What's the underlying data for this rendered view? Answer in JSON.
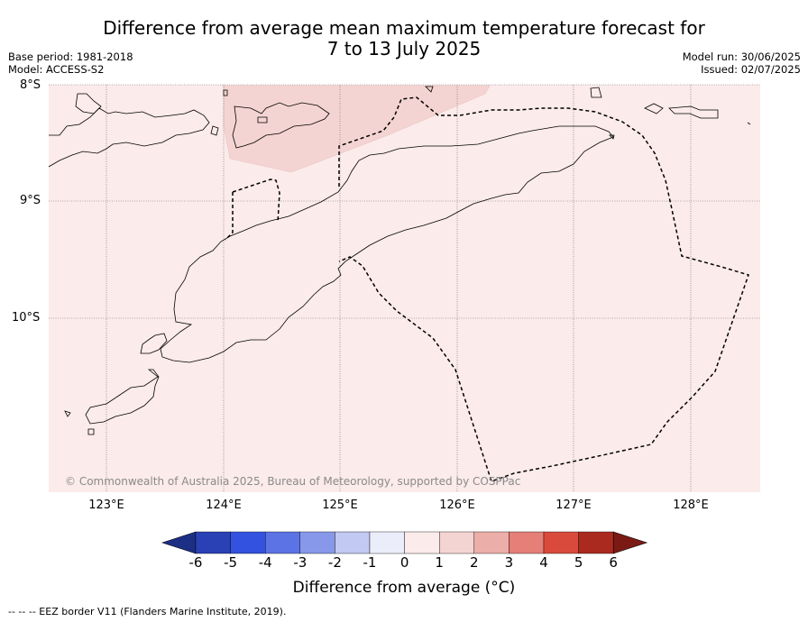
{
  "title_line1": "Difference from average mean maximum temperature forecast for",
  "title_line2": "7 to 13 July 2025",
  "base_period": "Base period: 1981-2018",
  "model": "Model: ACCESS-S2",
  "model_run": "Model run: 30/06/2025",
  "issued": "Issued: 02/07/2025",
  "lat_labels": [
    "8°S",
    "9°S",
    "10°S"
  ],
  "lon_labels": [
    "123°E",
    "124°E",
    "125°E",
    "126°E",
    "127°E",
    "128°E"
  ],
  "copyright": "© Commonwealth of Australia 2025, Bureau of Meteorology, supported by COSPPac",
  "colorbar": {
    "title": "Difference from average (°C)",
    "ticks": [
      "-6",
      "-5",
      "-4",
      "-3",
      "-2",
      "-1",
      "0",
      "1",
      "2",
      "3",
      "4",
      "5",
      "6"
    ],
    "colors": [
      "#1c2f85",
      "#2a40b5",
      "#3352e0",
      "#5c73e6",
      "#8798ea",
      "#c2c9f3",
      "#ecedfa",
      "#fbebea",
      "#f4d4d2",
      "#ecaea8",
      "#e57f77",
      "#d94a3d",
      "#ab2a20",
      "#7b1a14"
    ]
  },
  "field_colors": {
    "background": "#fbebea",
    "warm_patch": "#f4d4d2"
  },
  "footer": "--  --  -- EEZ border V11 (Flanders Marine Institute, 2019)."
}
